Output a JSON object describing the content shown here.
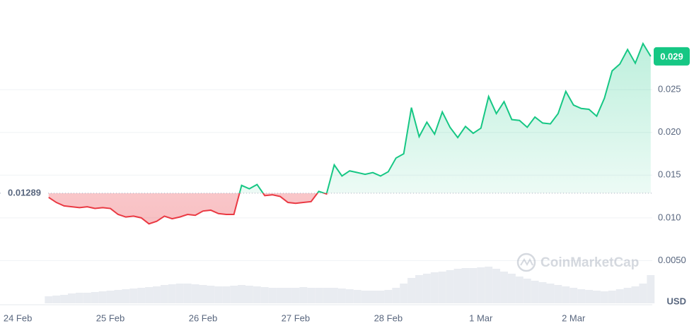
{
  "chart_data": {
    "type": "line",
    "watermark": "CoinMarketCap",
    "unit": "USD",
    "baseline": 0.01289,
    "baseline_label": "0.01289",
    "last_label": "0.029",
    "up_color": "#16c784",
    "down_color": "#ea3943",
    "values": [
      0.0124,
      0.0118,
      0.0114,
      0.0113,
      0.0112,
      0.0113,
      0.0111,
      0.0112,
      0.0111,
      0.0104,
      0.0101,
      0.0102,
      0.01,
      0.0093,
      0.0096,
      0.0102,
      0.0099,
      0.0101,
      0.0104,
      0.0103,
      0.0108,
      0.0109,
      0.0105,
      0.0104,
      0.0104,
      0.0138,
      0.0134,
      0.0139,
      0.0126,
      0.0127,
      0.0125,
      0.0118,
      0.0117,
      0.0118,
      0.0119,
      0.0131,
      0.0128,
      0.0162,
      0.0149,
      0.0155,
      0.0153,
      0.0151,
      0.0153,
      0.0149,
      0.0154,
      0.017,
      0.0175,
      0.0229,
      0.0195,
      0.0212,
      0.0198,
      0.0224,
      0.0206,
      0.0194,
      0.0207,
      0.0199,
      0.0205,
      0.0242,
      0.0222,
      0.0236,
      0.0215,
      0.0214,
      0.0206,
      0.0218,
      0.0211,
      0.021,
      0.0222,
      0.0248,
      0.0232,
      0.0228,
      0.0227,
      0.0219,
      0.024,
      0.0272,
      0.028,
      0.0297,
      0.0281,
      0.0304,
      0.0289
    ],
    "volume": [
      10,
      11,
      12,
      14,
      15,
      15,
      16,
      17,
      18,
      19,
      20,
      21,
      22,
      23,
      24,
      26,
      27,
      28,
      28,
      27,
      26,
      25,
      24,
      24,
      25,
      26,
      25,
      24,
      23,
      22,
      22,
      22,
      22,
      23,
      22,
      22,
      22,
      22,
      21,
      20,
      19,
      18,
      18,
      18,
      19,
      22,
      28,
      36,
      40,
      42,
      44,
      45,
      47,
      49,
      50,
      50,
      51,
      52,
      49,
      45,
      42,
      38,
      35,
      32,
      30,
      28,
      26,
      24,
      22,
      20,
      19,
      18,
      17,
      18,
      20,
      22,
      24,
      28,
      40
    ],
    "volume_ylim": [
      0,
      100
    ],
    "xlim": [
      -6.3,
      78.2
    ],
    "xticks": [
      {
        "value": -4,
        "label": "24 Feb"
      },
      {
        "value": 8,
        "label": "25 Feb"
      },
      {
        "value": 20,
        "label": "26 Feb"
      },
      {
        "value": 32,
        "label": "27 Feb"
      },
      {
        "value": 44,
        "label": "28 Feb"
      },
      {
        "value": 56,
        "label": "1 Mar"
      },
      {
        "value": 68,
        "label": "2 Mar"
      }
    ],
    "ylim": [
      0,
      0.035
    ],
    "yticks": [
      {
        "value": 0.005,
        "label": "0.0050"
      },
      {
        "value": 0.01,
        "label": "0.010"
      },
      0.015,
      {
        "value": 0.02,
        "label": "0.020"
      },
      0.025
    ],
    "grid": true
  }
}
